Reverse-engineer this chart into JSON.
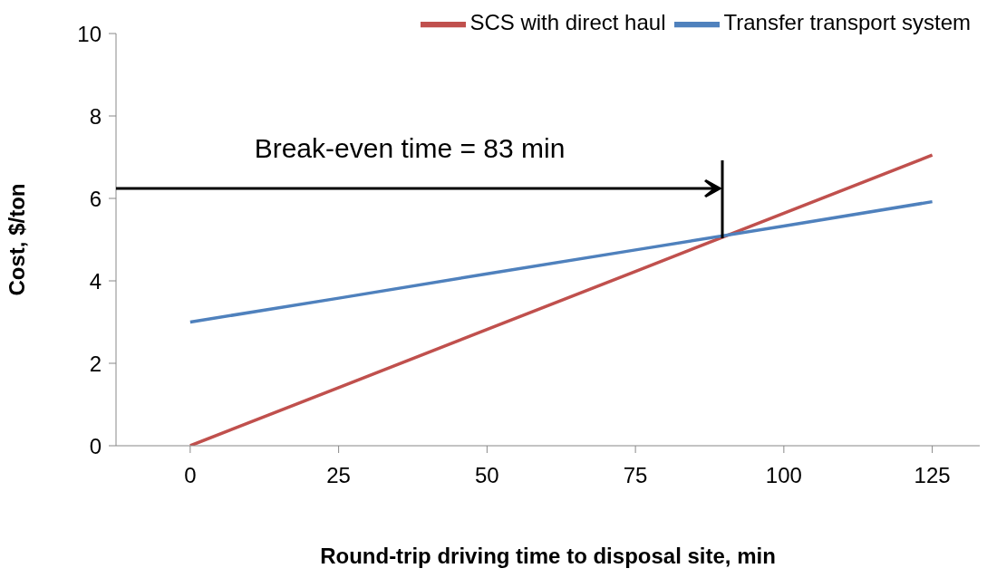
{
  "chart_data": {
    "type": "line",
    "xlabel": "Round-trip driving time to disposal site, min",
    "ylabel": "Cost, $/ton",
    "x": [
      0,
      25,
      50,
      75,
      100,
      125
    ],
    "series": [
      {
        "name": "SCS with direct haul",
        "color": "#c0504d",
        "values": [
          0,
          1.41,
          2.82,
          4.23,
          5.64,
          7.05
        ]
      },
      {
        "name": "Transfer transport system",
        "color": "#4f81bd",
        "values": [
          3,
          3.58,
          4.17,
          4.75,
          5.33,
          5.92
        ]
      }
    ],
    "xlim": [
      -12.5,
      133
    ],
    "xticks": [
      0,
      25,
      50,
      75,
      100,
      125
    ],
    "ylim": [
      0,
      10
    ],
    "yticks": [
      0,
      2,
      4,
      6,
      8,
      10
    ],
    "annotations": [
      "Break-even time = 83 min"
    ],
    "grid": false,
    "legend": "top",
    "marker": "none",
    "line_style": "solid"
  }
}
